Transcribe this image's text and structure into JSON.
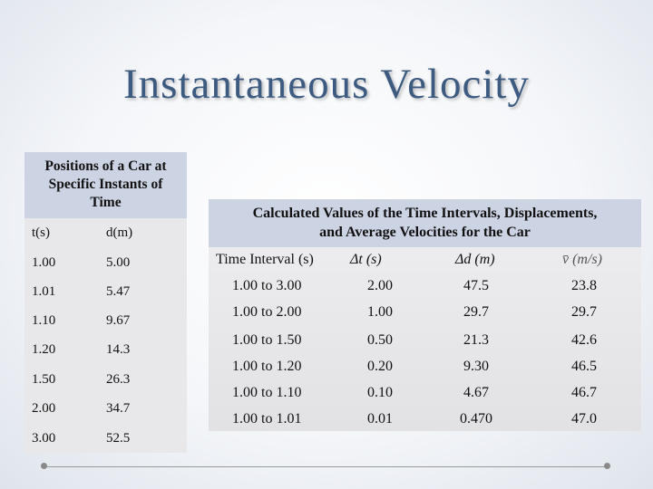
{
  "title": "Instantaneous Velocity",
  "left_table": {
    "caption": [
      "Positions of a Car at",
      "Specific Instants of",
      "Time"
    ],
    "headers": [
      "t(s)",
      "d(m)"
    ],
    "rows": [
      [
        "1.00",
        "5.00"
      ],
      [
        "1.01",
        "5.47"
      ],
      [
        "1.10",
        "9.67"
      ],
      [
        "1.20",
        "14.3"
      ],
      [
        "1.50",
        "26.3"
      ],
      [
        "2.00",
        "34.7"
      ],
      [
        "3.00",
        "52.5"
      ]
    ]
  },
  "right_table": {
    "caption": [
      "Calculated Values of the Time Intervals, Displacements,",
      "and Average Velocities for the Car"
    ],
    "headers": [
      "Time Interval (s)",
      "Δt (s)",
      "Δd (m)",
      "v̄ (m/s)"
    ],
    "rows": [
      [
        "1.00 to 3.00",
        "2.00",
        "47.5",
        "23.8"
      ],
      [
        "1.00 to 2.00",
        "1.00",
        "29.7",
        "29.7"
      ],
      [
        "1.00 to 1.50",
        "0.50",
        "21.3",
        "42.6"
      ],
      [
        "1.00 to 1.20",
        "0.20",
        "9.30",
        "46.5"
      ],
      [
        "1.00 to 1.10",
        "0.10",
        "4.67",
        "46.7"
      ],
      [
        "1.00 to 1.01",
        "0.01",
        "0.470",
        "47.0"
      ]
    ]
  }
}
